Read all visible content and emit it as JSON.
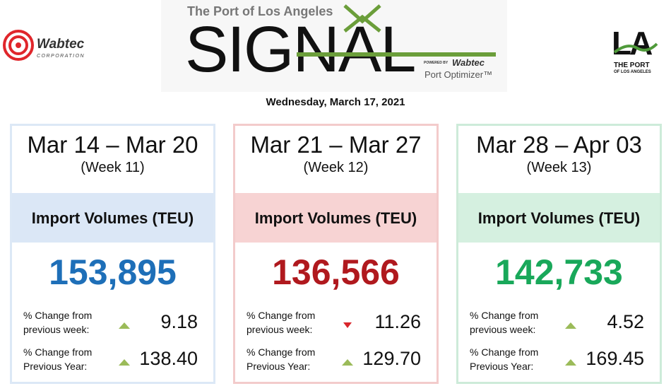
{
  "header": {
    "left_logo": {
      "name": "Wabtec",
      "sub": "CORPORATION"
    },
    "org": "The Port of Los Angeles",
    "title": "SIGNAL",
    "powered_by": "POWERED BY",
    "brand": "Wabtec",
    "product": "Port Optimizer™",
    "right_logo": {
      "mark": "LA",
      "line1": "THE PORT",
      "line2": "OF LOS ANGELES"
    },
    "date": "Wednesday, March 17, 2021"
  },
  "cards": [
    {
      "range": "Mar 14 – Mar 20",
      "week": "(Week 11)",
      "metric": "Import Volumes (TEU)",
      "value": "153,895",
      "border": "#dce8f6",
      "band": "#dbe7f6",
      "color": "#1e6fb8",
      "rows": [
        {
          "label1": "% Change from",
          "label2": "previous week:",
          "direction": "up",
          "value": "9.18"
        },
        {
          "label1": "% Change from",
          "label2": "Previous Year:",
          "direction": "up",
          "value": "138.40"
        }
      ]
    },
    {
      "range": "Mar 21 – Mar 27",
      "week": "(Week 12)",
      "metric": "Import Volumes (TEU)",
      "value": "136,566",
      "border": "#f3cbcb",
      "band": "#f7d3d3",
      "color": "#b0191e",
      "rows": [
        {
          "label1": "% Change from",
          "label2": "previous week:",
          "direction": "down",
          "value": "11.26"
        },
        {
          "label1": "% Change from",
          "label2": "Previous Year:",
          "direction": "up",
          "value": "129.70"
        }
      ]
    },
    {
      "range": "Mar 28 – Apr 03",
      "week": "(Week 13)",
      "metric": "Import Volumes (TEU)",
      "value": "142,733",
      "border": "#cdebd9",
      "band": "#d5f0e0",
      "color": "#19a85a",
      "rows": [
        {
          "label1": "% Change from",
          "label2": "previous week:",
          "direction": "up",
          "value": "4.52"
        },
        {
          "label1": "% Change from",
          "label2": "Previous Year:",
          "direction": "up",
          "value": "169.45"
        }
      ]
    }
  ]
}
